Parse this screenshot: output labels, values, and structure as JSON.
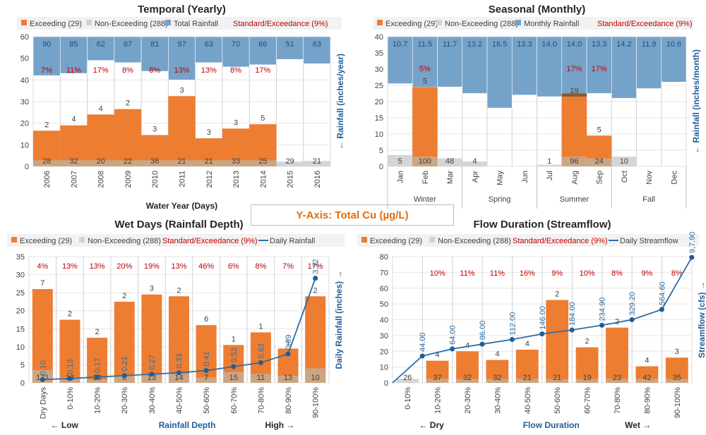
{
  "center_label": "Y-Axis: Total Cu (µg/L)",
  "colors": {
    "exceed": "#ed7d31",
    "nonexceed": "#d3d3d3",
    "rain": "#75a2c9",
    "line": "#2e6da4",
    "pct": "#c00000",
    "axis_blue": "#1f5d96",
    "text": "#404040"
  },
  "chart_data": [
    {
      "id": "temporal",
      "type": "bar",
      "title": "Temporal (Yearly)",
      "xlabel": "Water Year (Days)",
      "ylabel_right": "← Rainfall (inches/year)",
      "legend": [
        "Exceeding (29)",
        "Non-Exceeding (288)",
        "Total Rainfall",
        "Standard/Exceedance (9%)"
      ],
      "ylim": [
        0,
        60
      ],
      "yticks": [
        0,
        10,
        20,
        30,
        40,
        50,
        60
      ],
      "categories": [
        "2006",
        "2007",
        "2008",
        "2009",
        "2010",
        "2011",
        "2012",
        "2013",
        "2014",
        "2015",
        "2016"
      ],
      "exceed_height": [
        16.5,
        19,
        24,
        26.5,
        14.5,
        32.5,
        13,
        17.5,
        19.5,
        0,
        0
      ],
      "nonexceed_height": [
        2.8,
        2.8,
        2.8,
        2.8,
        2.8,
        2.8,
        2.8,
        2.8,
        2.8,
        2.2,
        2.5
      ],
      "exceed_count": [
        "2",
        "4",
        "4",
        "2",
        "3",
        "3",
        "3",
        "3",
        "5",
        "",
        ""
      ],
      "nonexceed_count": [
        "28",
        "32",
        "20",
        "22",
        "36",
        "21",
        "21",
        "33",
        "25",
        "29",
        "21"
      ],
      "rain_label": [
        "90",
        "85",
        "62",
        "67",
        "81",
        "97",
        "63",
        "70",
        "66",
        "51",
        "63"
      ],
      "rain_bottom": [
        42,
        43,
        49,
        48,
        44,
        40,
        48,
        46,
        47,
        49.5,
        47.5
      ],
      "pct": [
        "7%",
        "11%",
        "17%",
        "8%",
        "8%",
        "13%",
        "13%",
        "8%",
        "17%",
        "",
        ""
      ]
    },
    {
      "id": "seasonal",
      "type": "bar",
      "title": "Seasonal (Monthly)",
      "ylabel_right": "← Rainfall (inches/month)",
      "legend": [
        "Exceeding (29)",
        "Non-Exceeding (288)",
        "Monthly Rainfall",
        "Standard/Exceedance (9%)"
      ],
      "ylim": [
        0,
        40
      ],
      "yticks": [
        0,
        5,
        10,
        15,
        20,
        25,
        30,
        35,
        40
      ],
      "categories": [
        "Jan",
        "Feb",
        "Mar",
        "Apr",
        "May",
        "Jun",
        "Jul",
        "Aug",
        "Sep",
        "Oct",
        "Nov",
        "Dec"
      ],
      "groups": [
        {
          "label": "Winter",
          "span": [
            0,
            3
          ]
        },
        {
          "label": "Spring",
          "span": [
            3,
            6
          ]
        },
        {
          "label": "Summer",
          "span": [
            6,
            9
          ]
        },
        {
          "label": "Fall",
          "span": [
            9,
            12
          ]
        }
      ],
      "exceed_height": [
        0,
        24.5,
        0,
        0,
        0,
        0,
        0,
        21.5,
        9.5,
        0,
        0,
        0
      ],
      "exceed_extra": [
        0,
        0,
        0,
        0,
        0,
        0,
        0,
        1,
        0,
        0,
        0,
        0
      ],
      "nonexceed_height": [
        3.5,
        3,
        2.5,
        1.5,
        0,
        0,
        0.5,
        3,
        2.5,
        3,
        0,
        0
      ],
      "exceed_count": [
        "",
        "5",
        "",
        "",
        "",
        "",
        "",
        "19",
        "5",
        "",
        "",
        ""
      ],
      "nonexceed_count": [
        "5",
        "100",
        "48",
        "4",
        "",
        "",
        "1",
        "96",
        "24",
        "10",
        "",
        ""
      ],
      "rain_label": [
        "10.7",
        "11.5",
        "11.7",
        "13.2",
        "16.5",
        "13.3",
        "14.0",
        "14.0",
        "13.3",
        "14.2",
        "11.9",
        "10.6"
      ],
      "rain_bottom": [
        25.5,
        24.5,
        24.5,
        22.5,
        18,
        22,
        21.5,
        22,
        22.5,
        21,
        24,
        26
      ],
      "pct": [
        "",
        "5%",
        "",
        "",
        "",
        "",
        "",
        "17%",
        "17%",
        "",
        "",
        ""
      ]
    },
    {
      "id": "wetdays",
      "type": "bar",
      "title": "Wet Days (Rainfall Depth)",
      "ylabel_right": "Daily Rainfall (inches) →",
      "legend": [
        "Exceeding (29)",
        "Non-Exceeding (288)",
        "Standard/Exceedance (9%)",
        "Daily Rainfall"
      ],
      "ylim": [
        0,
        35
      ],
      "yticks": [
        0,
        5,
        10,
        15,
        20,
        25,
        30,
        35
      ],
      "categories": [
        "Dry Days",
        "0-10%",
        "10-20%",
        "20-30%",
        "30-40%",
        "40-50%",
        "50-60%",
        "60-70%",
        "70-80%",
        "80-90%",
        "90-100%"
      ],
      "axis_nav": {
        "left": "← Low",
        "middle": "Rainfall Depth",
        "right": "High →"
      },
      "exceed_height": [
        26,
        17.5,
        12.5,
        22.5,
        24.5,
        24,
        16,
        10.5,
        14,
        9.5,
        24
      ],
      "nonexceed_height": [
        3.5,
        1.5,
        1,
        2,
        2.5,
        2.5,
        1.5,
        3,
        2.5,
        2,
        4
      ],
      "exceed_count": [
        "7",
        "2",
        "2",
        "2",
        "3",
        "2",
        "6",
        "1",
        "1",
        "1",
        "2"
      ],
      "nonexceed_count": [
        "171",
        "13",
        "13",
        "8",
        "13",
        "14",
        "7",
        "15",
        "11",
        "13",
        "10"
      ],
      "pct": [
        "4%",
        "13%",
        "13%",
        "20%",
        "19%",
        "13%",
        "46%",
        "6%",
        "8%",
        "7%",
        "17%"
      ],
      "line_labels": [
        "0.10",
        "0.13",
        "0.17",
        "0.21",
        "0.27",
        "0.33",
        "0.41",
        "0.52",
        "0.63",
        "0.89",
        "3.32"
      ],
      "line_points": [
        0.9,
        1.2,
        1.6,
        2.0,
        2.4,
        2.8,
        3.4,
        4.5,
        5.6,
        8.0,
        29
      ]
    },
    {
      "id": "flowduration",
      "type": "bar",
      "title": "Flow Duration (Streamflow)",
      "ylabel_right": "Streamflow (cfs) →",
      "legend": [
        "Exceeding (29)",
        "Non-Exceeding (288)",
        "Standard/Exceedance (9%)",
        "Daily Streamflow"
      ],
      "ylim": [
        0,
        80
      ],
      "yticks": [
        0,
        10,
        20,
        30,
        40,
        50,
        60,
        70,
        80
      ],
      "categories": [
        "0-10%",
        "10-20%",
        "20-30%",
        "30-40%",
        "40-50%",
        "50-60%",
        "60-70%",
        "70-80%",
        "80-90%",
        "90-100%"
      ],
      "axis_nav": {
        "left": "← Dry",
        "middle": "Flow Duration",
        "right": "Wet →"
      },
      "exceed_height": [
        0,
        14,
        20,
        14.5,
        21,
        52.5,
        22.5,
        35,
        10.5,
        16
      ],
      "nonexceed_height": [
        2.5,
        2.5,
        2.5,
        2.5,
        2.5,
        2.5,
        2.5,
        2.5,
        2.5,
        2.5
      ],
      "exceed_count": [
        "",
        "4",
        "4",
        "4",
        "4",
        "2",
        "2",
        "2",
        "4",
        "3"
      ],
      "nonexceed_count": [
        "26",
        "37",
        "32",
        "32",
        "21",
        "21",
        "19",
        "23",
        "42",
        "35"
      ],
      "pct": [
        "",
        "10%",
        "11%",
        "11%",
        "16%",
        "9%",
        "10%",
        "8%",
        "9%",
        "8%"
      ],
      "line_labels": [
        "44.00",
        "64.00",
        "86.00",
        "112.00",
        "146.00",
        "184.00",
        "234.90",
        "329.20",
        "564.60",
        "9,7.90"
      ],
      "line_points": [
        17,
        21.5,
        24.5,
        27.5,
        31,
        33.5,
        36.5,
        40,
        46.5,
        79.5
      ]
    }
  ]
}
